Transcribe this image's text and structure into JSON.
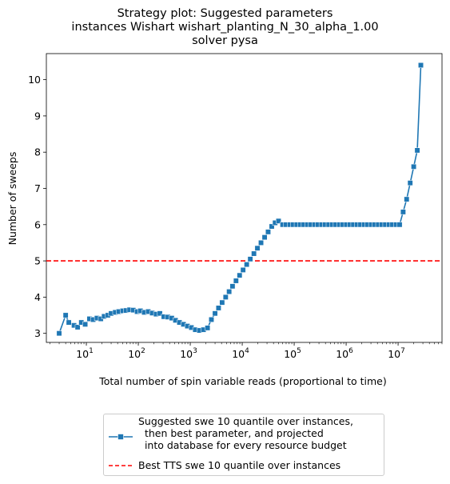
{
  "chart_data": {
    "type": "line",
    "title": [
      "Strategy plot: Suggested parameters",
      "instances Wishart wishart_planting_N_30_alpha_1.00",
      "solver pysa"
    ],
    "xlabel": "Total number of spin variable reads (proportional to time)",
    "ylabel": "Number of sweeps",
    "xscale": "log",
    "xlim": [
      1.7,
      70000000
    ],
    "ylim": [
      2.75,
      10.72
    ],
    "xticks": [
      {
        "exp": "1",
        "value": 10
      },
      {
        "exp": "2",
        "value": 100
      },
      {
        "exp": "3",
        "value": 1000
      },
      {
        "exp": "4",
        "value": 10000
      },
      {
        "exp": "5",
        "value": 100000
      },
      {
        "exp": "6",
        "value": 1000000
      },
      {
        "exp": "7",
        "value": 10000000
      }
    ],
    "xtick_base": "10",
    "yticks": [
      "3",
      "4",
      "5",
      "6",
      "7",
      "8",
      "9",
      "10"
    ],
    "legend_position": "below plot, centered",
    "grid": false,
    "series": [
      {
        "name": "Suggested swe 10 quantile over instances,\n  then best parameter, and projected\n  into database for every resource budget",
        "color": "#1f77b4",
        "marker": "square",
        "x": [
          3.0,
          4.0,
          4.6,
          5.8,
          6.8,
          8.0,
          9.5,
          11.5,
          13.5,
          16,
          19,
          22,
          26,
          30,
          36,
          42,
          50,
          58,
          68,
          80,
          95,
          110,
          130,
          155,
          185,
          220,
          260,
          310,
          370,
          440,
          520,
          620,
          740,
          880,
          1050,
          1250,
          1500,
          1800,
          2150,
          2550,
          3000,
          3500,
          4100,
          4800,
          5600,
          6500,
          7600,
          8900,
          10400,
          12200,
          14300,
          16800,
          19600,
          23000,
          27000,
          31500,
          37000,
          43000,
          50000,
          60000,
          70000,
          82000,
          96000,
          112000,
          131000,
          153000,
          180000,
          210000,
          246000,
          288000,
          337000,
          394000,
          461000,
          540000,
          631000,
          738000,
          864000,
          1010000,
          1180000,
          1380000,
          1620000,
          1890000,
          2210000,
          2590000,
          3030000,
          3550000,
          4150000,
          4860000,
          5690000,
          6650000,
          7790000,
          9110000,
          10700000,
          12500000,
          14600000,
          17100000,
          20000000,
          23400000,
          27400000
        ],
        "y": [
          3.0,
          3.5,
          3.3,
          3.22,
          3.17,
          3.3,
          3.25,
          3.4,
          3.38,
          3.42,
          3.4,
          3.47,
          3.5,
          3.55,
          3.58,
          3.6,
          3.62,
          3.63,
          3.65,
          3.64,
          3.6,
          3.62,
          3.58,
          3.6,
          3.56,
          3.53,
          3.55,
          3.46,
          3.45,
          3.42,
          3.36,
          3.3,
          3.25,
          3.2,
          3.16,
          3.1,
          3.08,
          3.1,
          3.15,
          3.38,
          3.55,
          3.7,
          3.85,
          4.0,
          4.15,
          4.3,
          4.45,
          4.6,
          4.75,
          4.9,
          5.05,
          5.2,
          5.35,
          5.5,
          5.65,
          5.8,
          5.95,
          6.05,
          6.1,
          6.0,
          6.0,
          6.0,
          6.0,
          6.0,
          6.0,
          6.0,
          6.0,
          6.0,
          6.0,
          6.0,
          6.0,
          6.0,
          6.0,
          6.0,
          6.0,
          6.0,
          6.0,
          6.0,
          6.0,
          6.0,
          6.0,
          6.0,
          6.0,
          6.0,
          6.0,
          6.0,
          6.0,
          6.0,
          6.0,
          6.0,
          6.0,
          6.0,
          6.0,
          6.35,
          6.7,
          7.15,
          7.6,
          8.05,
          10.4
        ]
      },
      {
        "name": "Best TTS swe 10 quantile over instances",
        "color": "#ff0000",
        "style": "dashed",
        "hline": 5.0
      }
    ]
  }
}
